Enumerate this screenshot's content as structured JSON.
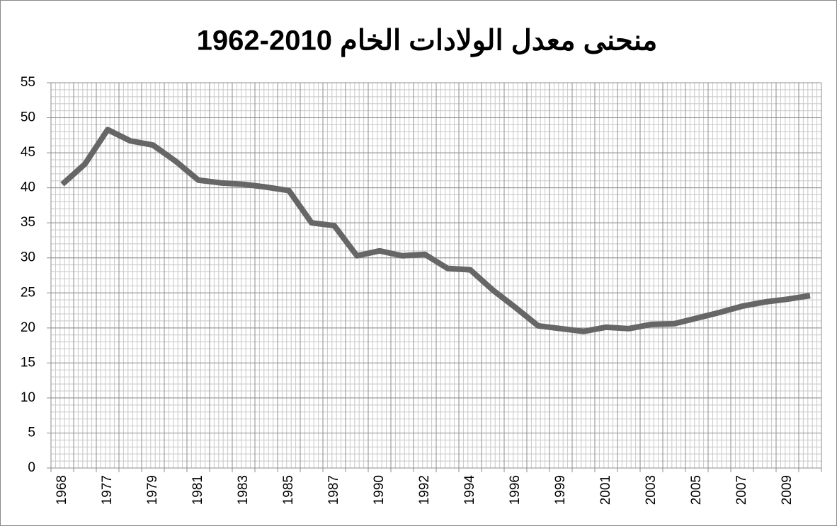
{
  "chart_data": {
    "type": "line",
    "title": "منحنى معدل الولادات الخام 2010-1962",
    "categories": [
      "1968",
      null,
      "1977",
      null,
      "1979",
      null,
      "1981",
      null,
      "1983",
      null,
      "1985",
      null,
      "1987",
      null,
      "1990",
      null,
      "1992",
      null,
      "1994",
      null,
      "1996",
      null,
      "1999",
      null,
      "2001",
      null,
      "2003",
      null,
      "2005",
      null,
      "2007",
      null,
      "2009",
      null
    ],
    "series": [
      {
        "color": "#666666",
        "values": [
          40.5,
          43.4,
          48.3,
          46.7,
          46.1,
          43.8,
          41.1,
          40.7,
          40.5,
          40.1,
          39.6,
          35.0,
          34.6,
          30.3,
          31.0,
          30.3,
          30.5,
          28.5,
          28.3,
          25.4,
          22.9,
          20.3,
          19.9,
          19.5,
          20.1,
          19.9,
          20.5,
          20.6,
          21.4,
          22.2,
          23.1,
          23.7,
          24.1,
          24.6
        ]
      }
    ],
    "ylim": [
      0,
      55
    ],
    "yticks": [
      0,
      5,
      10,
      15,
      20,
      25,
      30,
      35,
      40,
      45,
      50,
      55
    ],
    "grid": true,
    "minor_grid": true
  }
}
